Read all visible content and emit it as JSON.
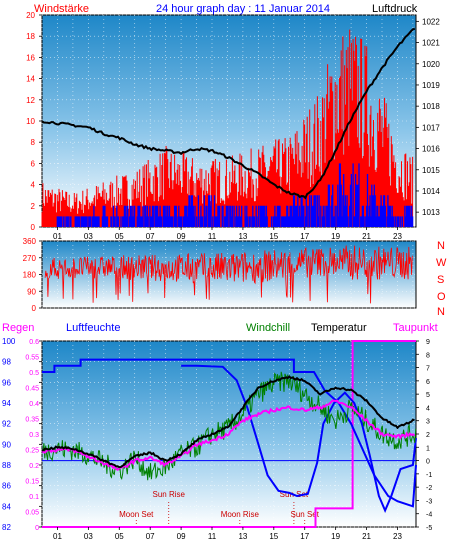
{
  "header": {
    "left": "Windstärke",
    "title": "24 hour graph day : 11 Januar 2014",
    "right": "Luftdruck"
  },
  "lower_header": {
    "regen": "Regen",
    "luftfeuchte": "Luftfeuchte",
    "windchill": "Windchill",
    "temperatur": "Temperatur",
    "taupunkt": "Taupunkt"
  },
  "compass": [
    "N",
    "W",
    "S",
    "O",
    "N"
  ],
  "colors": {
    "red": "#ff0000",
    "blue": "#0000ff",
    "black": "#000000",
    "green": "#008000",
    "magenta": "#ff00ff",
    "darkred": "#cc0000",
    "plot_top": "#1e87c8",
    "plot_bottom": "#ffffff"
  },
  "chart_data": [
    {
      "type": "line",
      "name": "wind_pressure",
      "x_ticks": [
        "01",
        "03",
        "05",
        "07",
        "09",
        "11",
        "13",
        "15",
        "17",
        "19",
        "21",
        "23"
      ],
      "y_left_ticks": [
        0,
        2,
        4,
        6,
        8,
        10,
        12,
        14,
        16,
        18,
        20
      ],
      "y_left_range": [
        0,
        20
      ],
      "y_right_ticks": [
        1013,
        1014,
        1015,
        1016,
        1017,
        1018,
        1019,
        1020,
        1021,
        1022
      ],
      "y_right_range": [
        1012.3,
        1022.3
      ],
      "pressure": [
        [
          0,
          1017.3
        ],
        [
          1,
          1017.2
        ],
        [
          2,
          1017.1
        ],
        [
          3,
          1017.0
        ],
        [
          4,
          1016.7
        ],
        [
          5,
          1016.5
        ],
        [
          6,
          1016.2
        ],
        [
          7,
          1016.0
        ],
        [
          8,
          1015.9
        ],
        [
          9,
          1015.8
        ],
        [
          10,
          1016.0
        ],
        [
          11,
          1015.9
        ],
        [
          12,
          1015.6
        ],
        [
          13,
          1015.2
        ],
        [
          14,
          1014.8
        ],
        [
          15,
          1014.3
        ],
        [
          16,
          1013.9
        ],
        [
          17,
          1013.7
        ],
        [
          18,
          1014.5
        ],
        [
          19,
          1015.9
        ],
        [
          20,
          1017.4
        ],
        [
          21,
          1018.7
        ],
        [
          22,
          1019.8
        ],
        [
          23,
          1020.8
        ],
        [
          24,
          1021.6
        ]
      ],
      "gust_envelope": [
        [
          0,
          4
        ],
        [
          2,
          3
        ],
        [
          4,
          4
        ],
        [
          6,
          5
        ],
        [
          8,
          7
        ],
        [
          10,
          6
        ],
        [
          12,
          6
        ],
        [
          14,
          7
        ],
        [
          16,
          8
        ],
        [
          17,
          10
        ],
        [
          18,
          12
        ],
        [
          19,
          17
        ],
        [
          20,
          18
        ],
        [
          21,
          16
        ],
        [
          22,
          12
        ],
        [
          23,
          8
        ],
        [
          24,
          6
        ]
      ],
      "wind_envelope": [
        [
          0,
          0
        ],
        [
          2,
          1
        ],
        [
          4,
          2
        ],
        [
          6,
          2
        ],
        [
          8,
          2
        ],
        [
          10,
          3
        ],
        [
          12,
          2
        ],
        [
          14,
          2
        ],
        [
          16,
          2
        ],
        [
          17,
          3
        ],
        [
          18,
          3
        ],
        [
          19,
          5
        ],
        [
          20,
          6
        ],
        [
          21,
          4
        ],
        [
          22,
          3
        ],
        [
          23,
          2
        ],
        [
          24,
          2
        ]
      ]
    },
    {
      "type": "scatter",
      "name": "wind_direction",
      "x_ticks": [
        "01",
        "03",
        "05",
        "07",
        "09",
        "11",
        "13",
        "15",
        "17",
        "19",
        "21",
        "23"
      ],
      "y_ticks": [
        0,
        90,
        180,
        270,
        360
      ],
      "y_range": [
        0,
        360
      ],
      "band": [
        [
          0,
          150,
          270
        ],
        [
          4,
          160,
          280
        ],
        [
          8,
          140,
          290
        ],
        [
          12,
          120,
          300
        ],
        [
          16,
          150,
          320
        ],
        [
          18,
          170,
          330
        ],
        [
          20,
          150,
          340
        ],
        [
          24,
          150,
          330
        ]
      ]
    },
    {
      "type": "line",
      "name": "temp_humidity",
      "x_ticks": [
        "01",
        "03",
        "05",
        "07",
        "09",
        "11",
        "13",
        "15",
        "17",
        "19",
        "21",
        "23"
      ],
      "humidity_ticks": [
        82,
        84,
        86,
        88,
        90,
        92,
        94,
        96,
        98,
        100
      ],
      "humidity_range": [
        82,
        100
      ],
      "rain_ticks": [
        0,
        0.05,
        0.1,
        0.15,
        0.2,
        0.25,
        0.3,
        0.35,
        0.4,
        0.45,
        0.5,
        0.55,
        0.6
      ],
      "rain_range": [
        0,
        0.6
      ],
      "temp_ticks": [
        -5,
        -4,
        -3,
        -2,
        -1,
        0,
        1,
        2,
        3,
        4,
        5,
        6,
        7,
        8,
        9
      ],
      "temp_range": [
        -5,
        9
      ],
      "temperature": [
        [
          0,
          0.8
        ],
        [
          1,
          1.0
        ],
        [
          2,
          0.9
        ],
        [
          3,
          0.5
        ],
        [
          4,
          0.0
        ],
        [
          5,
          -0.5
        ],
        [
          6,
          0.3
        ],
        [
          7,
          0.6
        ],
        [
          8,
          0.0
        ],
        [
          9,
          0.5
        ],
        [
          10,
          1.5
        ],
        [
          11,
          2.0
        ],
        [
          12,
          2.5
        ],
        [
          13,
          4.0
        ],
        [
          14,
          5.5
        ],
        [
          15,
          6.0
        ],
        [
          16,
          6.3
        ],
        [
          17,
          6.0
        ],
        [
          18,
          5.0
        ],
        [
          19,
          5.5
        ],
        [
          20,
          5.3
        ],
        [
          21,
          4.5
        ],
        [
          22,
          3.2
        ],
        [
          23,
          2.5
        ],
        [
          24,
          3.0
        ]
      ],
      "windchill": [
        [
          0,
          0.7
        ],
        [
          1,
          0.9
        ],
        [
          2,
          0.8
        ],
        [
          3,
          0.4
        ],
        [
          4,
          -0.2
        ],
        [
          5,
          -0.8
        ],
        [
          6,
          0.2
        ],
        [
          7,
          -1.0
        ],
        [
          8,
          -0.5
        ],
        [
          9,
          0.5
        ],
        [
          10,
          1.0
        ],
        [
          11,
          2.0
        ],
        [
          12,
          2.4
        ],
        [
          13,
          3.5
        ],
        [
          14,
          5.0
        ],
        [
          15,
          5.8
        ],
        [
          16,
          6.0
        ],
        [
          17,
          5.0
        ],
        [
          18,
          4.0
        ],
        [
          19,
          3.0
        ],
        [
          20,
          4.0
        ],
        [
          21,
          3.0
        ],
        [
          22,
          2.0
        ],
        [
          23,
          1.5
        ],
        [
          24,
          2.0
        ]
      ],
      "dewpoint": [
        [
          0,
          0.7
        ],
        [
          1,
          0.8
        ],
        [
          2,
          0.8
        ],
        [
          3,
          0.3
        ],
        [
          4,
          -0.2
        ],
        [
          5,
          -0.7
        ],
        [
          6,
          0.0
        ],
        [
          7,
          0.2
        ],
        [
          8,
          -0.3
        ],
        [
          9,
          0.3
        ],
        [
          10,
          1.2
        ],
        [
          11,
          1.5
        ],
        [
          12,
          2.0
        ],
        [
          13,
          3.0
        ],
        [
          14,
          3.5
        ],
        [
          15,
          3.8
        ],
        [
          16,
          4.0
        ],
        [
          17,
          3.8
        ],
        [
          18,
          4.0
        ],
        [
          19,
          4.5
        ],
        [
          20,
          4.0
        ],
        [
          21,
          3.0
        ],
        [
          22,
          2.0
        ],
        [
          23,
          1.8
        ],
        [
          24,
          2.0
        ]
      ],
      "humidity": [
        [
          0,
          97
        ],
        [
          0.8,
          97
        ],
        [
          0.8,
          97.6
        ],
        [
          2.5,
          97.6
        ],
        [
          2.5,
          98.2
        ],
        [
          16.3,
          98.2
        ],
        [
          16.3,
          97
        ],
        [
          17.6,
          97
        ],
        [
          18.3,
          95.2
        ],
        [
          19.2,
          94
        ],
        [
          20,
          92
        ],
        [
          21.5,
          87
        ],
        [
          22.4,
          85
        ],
        [
          23,
          84.5
        ],
        [
          24,
          84
        ],
        [
          24.2,
          88
        ]
      ],
      "humidity_low_segment": [
        [
          9,
          97.6
        ],
        [
          10,
          97.6
        ],
        [
          11.7,
          97.5
        ],
        [
          12.6,
          96.2
        ],
        [
          13.3,
          93.5
        ],
        [
          14,
          90
        ],
        [
          14.6,
          87
        ],
        [
          15.3,
          85.5
        ],
        [
          16,
          85.3
        ],
        [
          16.5,
          85
        ],
        [
          17.2,
          85.2
        ],
        [
          17.8,
          88.2
        ],
        [
          18.2,
          92
        ],
        [
          18.9,
          94
        ],
        [
          19.6,
          95
        ],
        [
          20.2,
          94
        ],
        [
          20.7,
          92
        ],
        [
          21.2,
          89
        ],
        [
          21.8,
          85
        ],
        [
          22.2,
          83.6
        ],
        [
          22.6,
          85
        ],
        [
          23.2,
          87.6
        ],
        [
          24,
          88
        ],
        [
          24.2,
          90.6
        ]
      ],
      "rain": [
        [
          0,
          0
        ],
        [
          17.7,
          0
        ],
        [
          17.7,
          0.06
        ],
        [
          20.1,
          0.06
        ],
        [
          20.1,
          0.6
        ],
        [
          24.2,
          0.6
        ]
      ],
      "annotations": [
        {
          "label": "Moon Set",
          "hour": 6.1
        },
        {
          "label": "Sun Rise",
          "hour": 8.2
        },
        {
          "label": "Moon Rise",
          "hour": 12.8
        },
        {
          "label": "Sun Set",
          "hour": 16.3
        },
        {
          "label": "Sun Set",
          "hour": 17.0
        }
      ]
    }
  ]
}
